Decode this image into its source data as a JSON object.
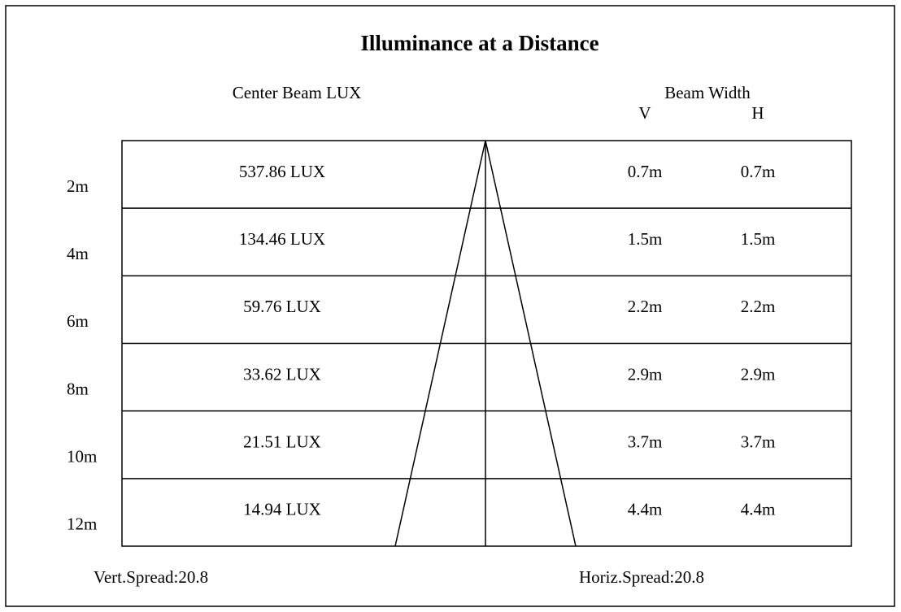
{
  "title": "Illuminance at a Distance",
  "headers": {
    "lux": "Center Beam LUX",
    "beam_width": "Beam Width",
    "v": "V",
    "h": "H"
  },
  "rows": [
    {
      "distance": "2m",
      "lux": "537.86 LUX",
      "v": "0.7m",
      "h": "0.7m"
    },
    {
      "distance": "4m",
      "lux": "134.46 LUX",
      "v": "1.5m",
      "h": "1.5m"
    },
    {
      "distance": "6m",
      "lux": "59.76 LUX",
      "v": "2.2m",
      "h": "2.2m"
    },
    {
      "distance": "8m",
      "lux": "33.62 LUX",
      "v": "2.9m",
      "h": "2.9m"
    },
    {
      "distance": "10m",
      "lux": "21.51 LUX",
      "v": "3.7m",
      "h": "3.7m"
    },
    {
      "distance": "12m",
      "lux": "14.94 LUX",
      "v": "4.4m",
      "h": "4.4m"
    }
  ],
  "footer": {
    "vert_spread": "Vert.Spread:20.8",
    "horiz_spread": "Horiz.Spread:20.8"
  }
}
